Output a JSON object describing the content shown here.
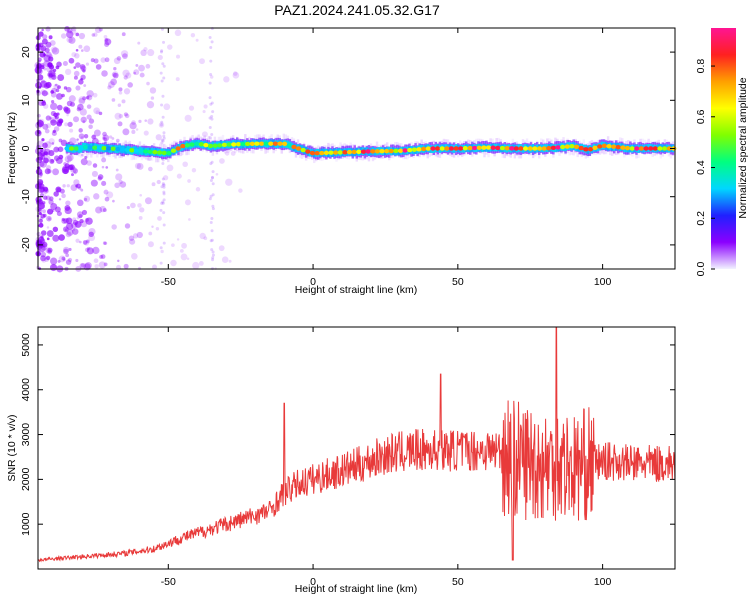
{
  "figure": {
    "title": "PAZ1.2024.241.05.32.G17"
  },
  "chart_data": [
    {
      "type": "heatmap",
      "xlabel": "Height of straight line (km)",
      "ylabel": "Frequency (Hz)",
      "xlim": [
        -95,
        125
      ],
      "ylim": [
        -25,
        25
      ],
      "xticks": [
        -50,
        0,
        50,
        100
      ],
      "yticks": [
        -20,
        -10,
        0,
        10,
        20
      ],
      "colorbar": {
        "label": "Normalized spectral amplitude",
        "range": [
          0,
          0.95
        ],
        "ticks": [
          0.0,
          0.2,
          0.4,
          0.6,
          0.8
        ],
        "colormap": [
          "#f2f2ff",
          "#8b00ff",
          "#2020ff",
          "#00d7ff",
          "#00ff80",
          "#80ff00",
          "#ffff00",
          "#ffa000",
          "#ff2020",
          "#ff1493"
        ]
      },
      "ridge": {
        "description_points": [
          [
            -80,
            0.3
          ],
          [
            -70,
            0
          ],
          [
            -60,
            -0.5
          ],
          [
            -50,
            -1
          ],
          [
            -45,
            0.5
          ],
          [
            -40,
            1
          ],
          [
            -35,
            0.5
          ],
          [
            -30,
            0.8
          ],
          [
            -20,
            1
          ],
          [
            -10,
            1
          ],
          [
            -5,
            0
          ],
          [
            0,
            -1
          ],
          [
            10,
            -0.8
          ],
          [
            20,
            -0.6
          ],
          [
            30,
            -0.5
          ],
          [
            40,
            0
          ],
          [
            50,
            0
          ],
          [
            60,
            0.2
          ],
          [
            70,
            0
          ],
          [
            80,
            0
          ],
          [
            90,
            0.5
          ],
          [
            95,
            -0.3
          ],
          [
            100,
            0.6
          ],
          [
            110,
            0
          ],
          [
            120,
            0
          ],
          [
            125,
            0
          ]
        ]
      }
    },
    {
      "type": "line",
      "xlabel": "Height of straight line (km)",
      "ylabel": "SNR (10 * v/v)",
      "xlim": [
        -95,
        125
      ],
      "ylim": [
        0,
        5400
      ],
      "xticks": [
        -50,
        0,
        50,
        100
      ],
      "yticks": [
        1000,
        2000,
        3000,
        4000,
        5000
      ],
      "color": "#e83a3a",
      "envelope": {
        "x": [
          -95,
          -85,
          -75,
          -65,
          -55,
          -45,
          -35,
          -25,
          -15,
          -10,
          -5,
          5,
          15,
          25,
          35,
          45,
          55,
          60,
          65,
          70,
          75,
          80,
          85,
          90,
          95,
          100,
          105,
          110,
          115,
          120,
          125
        ],
        "y": [
          200,
          250,
          300,
          350,
          450,
          700,
          900,
          1100,
          1300,
          1700,
          1900,
          2100,
          2300,
          2550,
          2650,
          2650,
          2650,
          2650,
          2650,
          2450,
          2400,
          2300,
          2400,
          2250,
          2350,
          2400,
          2400,
          2350,
          2350,
          2350,
          2350
        ]
      },
      "spikes": [
        {
          "x": -10,
          "y": 3700
        },
        {
          "x": 44,
          "y": 4350
        },
        {
          "x": 84,
          "y": 5400
        },
        {
          "x": 69,
          "y": 200
        }
      ]
    }
  ]
}
